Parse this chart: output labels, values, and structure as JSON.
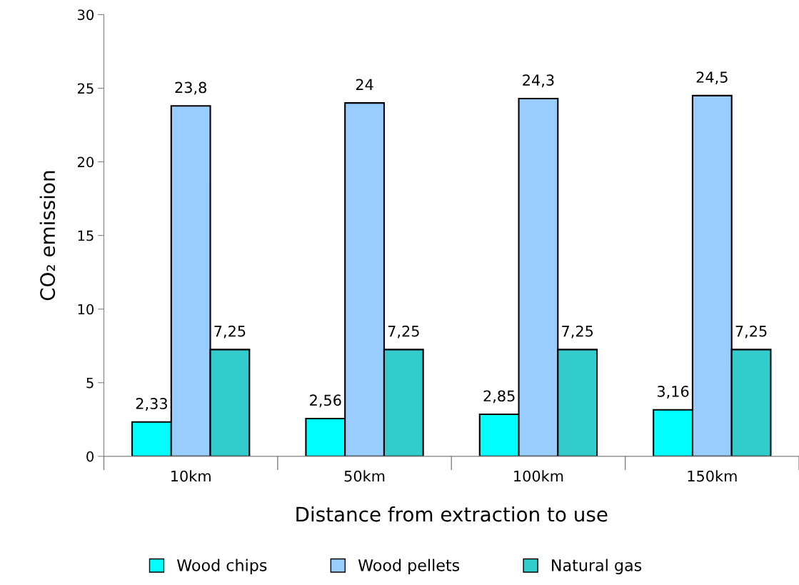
{
  "chart_data": {
    "type": "bar",
    "xlabel": "Distance from extraction to use",
    "ylabel": "CO₂ emission",
    "categories": [
      "10km",
      "50km",
      "100km",
      "150km"
    ],
    "series": [
      {
        "name": "Wood chips",
        "color": "#00ffff",
        "values": [
          2.33,
          2.56,
          2.85,
          3.16
        ],
        "value_labels": [
          "2,33",
          "2,56",
          "2,85",
          "3,16"
        ]
      },
      {
        "name": "Wood pellets",
        "color": "#99ccff",
        "values": [
          23.8,
          24,
          24.3,
          24.5
        ],
        "value_labels": [
          "23,8",
          "24",
          "24,3",
          "24,5"
        ]
      },
      {
        "name": "Natural gas",
        "color": "#33cccc",
        "values": [
          7.25,
          7.25,
          7.25,
          7.25
        ],
        "value_labels": [
          "7,25",
          "7,25",
          "7,25",
          "7,25"
        ]
      }
    ],
    "ylim": [
      0,
      30
    ],
    "yticks": [
      0,
      5,
      10,
      15,
      20,
      25,
      30
    ],
    "grid": false,
    "legend": "bottom"
  }
}
